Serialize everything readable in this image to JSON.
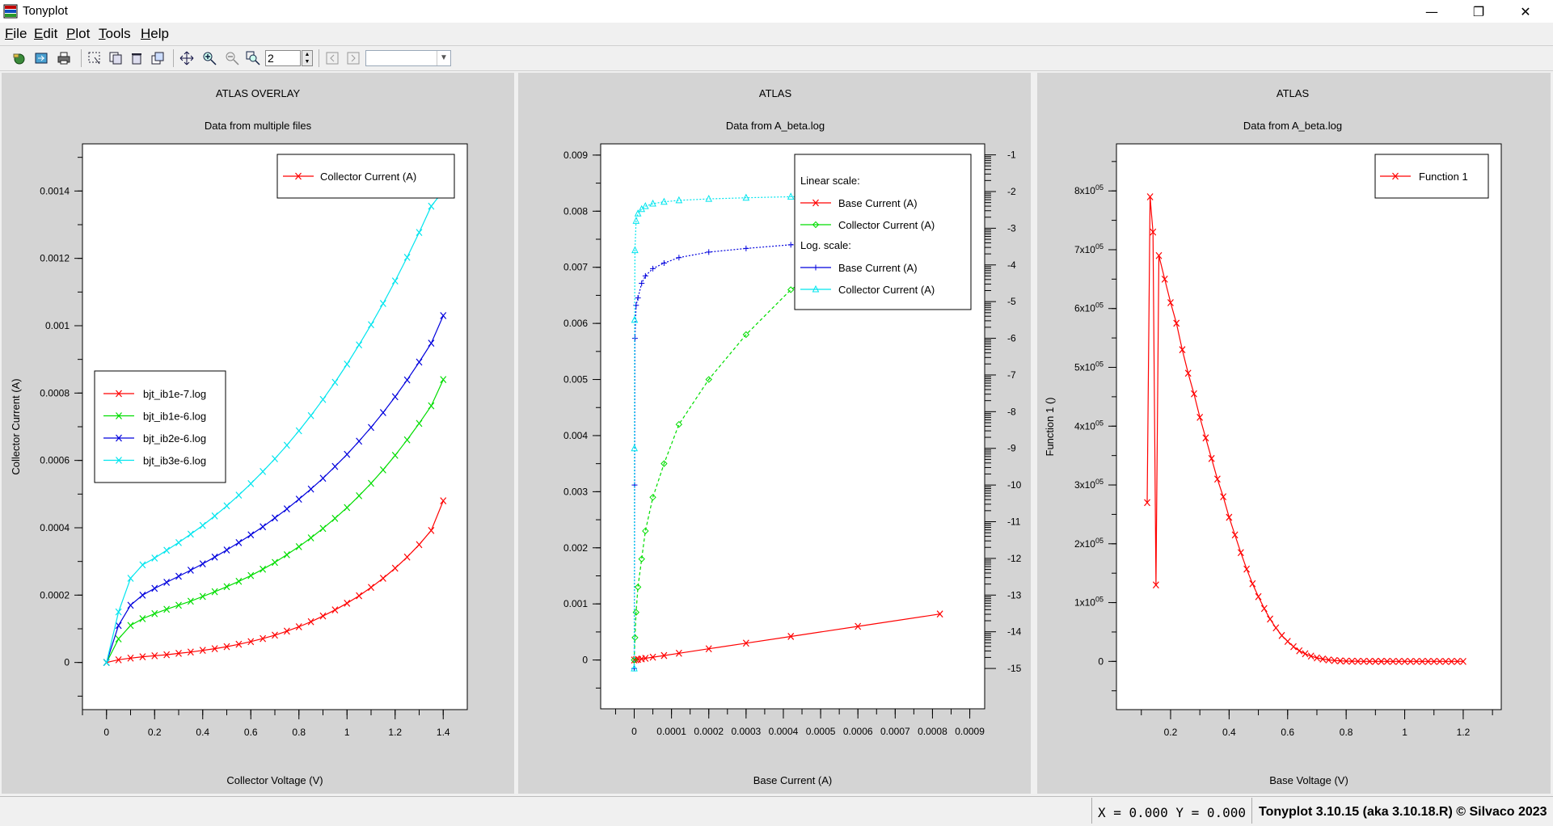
{
  "window": {
    "title": "Tonyplot",
    "minimize": "—",
    "restore": "❐",
    "close": "✕"
  },
  "menu": [
    {
      "label": "File",
      "key": "F",
      "rest": "ile"
    },
    {
      "label": "Edit",
      "key": "E",
      "rest": "dit"
    },
    {
      "label": "Plot",
      "key": "P",
      "rest": "lot"
    },
    {
      "label": "Tools",
      "key": "T",
      "rest": "ools"
    },
    {
      "label": "Help",
      "key": "H",
      "rest": "elp"
    }
  ],
  "toolbar": {
    "icons": [
      "open-icon",
      "import-icon",
      "print-icon",
      "select-region-icon",
      "copy-icon",
      "delete-icon",
      "duplicate-icon",
      "pan-icon",
      "zoom-in-icon",
      "zoom-out-icon",
      "zoom-box-icon",
      "prev-icon",
      "next-icon"
    ],
    "zoom_value": "2",
    "combo_value": ""
  },
  "status": {
    "xy": "X = 0.000 Y = 0.000",
    "version": "Tonyplot 3.10.15 (aka 3.10.18.R) © Silvaco 2023"
  },
  "chart_data": [
    {
      "type": "line",
      "title": "ATLAS OVERLAY",
      "subtitle": "Data from multiple files",
      "xlabel": "Collector Voltage (V)",
      "ylabel": "Collector Current (A)",
      "xlim": [
        -0.1,
        1.5
      ],
      "ylim": [
        -0.00014,
        0.00154
      ],
      "xticks": [
        "0",
        "0.2",
        "0.4",
        "0.6",
        "0.8",
        "1",
        "1.2",
        "1.4"
      ],
      "xtick_values": [
        0,
        0.2,
        0.4,
        0.6,
        0.8,
        1,
        1.2,
        1.4
      ],
      "yticks": [
        "0",
        "0.0002",
        "0.0004",
        "0.0006",
        "0.0008",
        "0.001",
        "0.0012",
        "0.0014"
      ],
      "ytick_values": [
        0,
        0.0002,
        0.0004,
        0.0006,
        0.0008,
        0.001,
        0.0012,
        0.0014
      ],
      "grid": false,
      "legend_title": "Collector Current (A)",
      "legend": [
        {
          "label": "bjt_ib1e-7.log",
          "color": "#ff0000"
        },
        {
          "label": "bjt_ib1e-6.log",
          "color": "#00dd00"
        },
        {
          "label": "bjt_ib2e-6.log",
          "color": "#0000dd"
        },
        {
          "label": "bjt_ib3e-6.log",
          "color": "#00e5ee"
        }
      ],
      "x": [
        0,
        0.05,
        0.1,
        0.15,
        0.2,
        0.25,
        0.3,
        0.35,
        0.4,
        0.45,
        0.5,
        0.55,
        0.6,
        0.65,
        0.7,
        0.75,
        0.8,
        0.85,
        0.9,
        0.95,
        1.0,
        1.05,
        1.1,
        1.15,
        1.2,
        1.25,
        1.3,
        1.35,
        1.4
      ],
      "series": [
        {
          "name": "bjt_ib1e-7.log",
          "color": "#ff0000",
          "values": [
            0,
            8e-06,
            1.3e-05,
            1.7e-05,
            2e-05,
            2.3e-05,
            2.7e-05,
            3.1e-05,
            3.6e-05,
            4.1e-05,
            4.7e-05,
            5.4e-05,
            6.2e-05,
            7.1e-05,
            8.1e-05,
            9.3e-05,
            0.000106,
            0.000121,
            0.000138,
            0.000156,
            0.000176,
            0.000198,
            0.000223,
            0.00025,
            0.00028,
            0.000313,
            0.00035,
            0.000392,
            0.00048
          ]
        },
        {
          "name": "bjt_ib1e-6.log",
          "color": "#00dd00",
          "values": [
            0,
            7e-05,
            0.00011,
            0.00013,
            0.000145,
            0.000158,
            0.00017,
            0.000182,
            0.000196,
            0.00021,
            0.000225,
            0.000241,
            0.000258,
            0.000277,
            0.000297,
            0.00032,
            0.000344,
            0.00037,
            0.000398,
            0.000428,
            0.00046,
            0.000495,
            0.000532,
            0.000572,
            0.000615,
            0.000661,
            0.00071,
            0.000762,
            0.00084
          ]
        },
        {
          "name": "bjt_ib2e-6.log",
          "color": "#0000dd",
          "values": [
            0,
            0.00011,
            0.00017,
            0.0002,
            0.00022,
            0.000238,
            0.000256,
            0.000274,
            0.000293,
            0.000313,
            0.000334,
            0.000356,
            0.000379,
            0.000403,
            0.000429,
            0.000456,
            0.000485,
            0.000515,
            0.000547,
            0.000582,
            0.000618,
            0.000657,
            0.000698,
            0.000742,
            0.000789,
            0.000839,
            0.000892,
            0.000948,
            0.00103
          ]
        },
        {
          "name": "bjt_ib3e-6.log",
          "color": "#00e5ee",
          "values": [
            0,
            0.00015,
            0.00025,
            0.00029,
            0.00031,
            0.000333,
            0.000356,
            0.000381,
            0.000407,
            0.000435,
            0.000465,
            0.000497,
            0.000531,
            0.000567,
            0.000605,
            0.000645,
            0.000688,
            0.000733,
            0.000781,
            0.000832,
            0.000886,
            0.000943,
            0.001003,
            0.001066,
            0.001133,
            0.001203,
            0.001277,
            0.001355,
            0.0014
          ]
        }
      ]
    },
    {
      "type": "line",
      "title": "ATLAS",
      "subtitle": "Data from A_beta.log",
      "xlabel": "Base Current (A)",
      "ylabel": "",
      "xlim": [
        -9e-05,
        0.00094
      ],
      "ylim": [
        -0.00087,
        0.0092
      ],
      "y2lim": [
        -16.1,
        -0.7
      ],
      "xticks": [
        "0",
        "0.0001",
        "0.0002",
        "0.0003",
        "0.0004",
        "0.0005",
        "0.0006",
        "0.0007",
        "0.0008",
        "0.0009"
      ],
      "xtick_values": [
        0,
        0.0001,
        0.0002,
        0.0003,
        0.0004,
        0.0005,
        0.0006,
        0.0007,
        0.0008,
        0.0009
      ],
      "yticks": [
        "0",
        "0.001",
        "0.002",
        "0.003",
        "0.004",
        "0.005",
        "0.006",
        "0.007",
        "0.008",
        "0.009"
      ],
      "ytick_values": [
        0,
        0.001,
        0.002,
        0.003,
        0.004,
        0.005,
        0.006,
        0.007,
        0.008,
        0.009
      ],
      "y2ticks": [
        "-1",
        "-2",
        "-3",
        "-4",
        "-5",
        "-6",
        "-7",
        "-8",
        "-9",
        "-10",
        "-11",
        "-12",
        "-13",
        "-14",
        "-15"
      ],
      "y2tick_values": [
        -1,
        -2,
        -3,
        -4,
        -5,
        -6,
        -7,
        -8,
        -9,
        -10,
        -11,
        -12,
        -13,
        -14,
        -15
      ],
      "grid": false,
      "legend_groups": [
        {
          "heading": "Linear scale:",
          "items": [
            {
              "label": "Base Current (A)",
              "color": "#ff0000"
            },
            {
              "label": "Collector Current (A)",
              "color": "#00dd00"
            }
          ]
        },
        {
          "heading": "Log. scale:",
          "items": [
            {
              "label": "Base Current (A)",
              "color": "#0000dd"
            },
            {
              "label": "Collector Current (A)",
              "color": "#00e5ee"
            }
          ]
        }
      ],
      "series": [
        {
          "name": "Base Current (A)",
          "scale": "linear",
          "color": "#ff0000",
          "x": [
            0,
            5e-06,
            1e-05,
            2e-05,
            3e-05,
            5e-05,
            8e-05,
            0.00012,
            0.0002,
            0.0003,
            0.00042,
            0.0006,
            0.00082
          ],
          "values": [
            0,
            5e-06,
            1e-05,
            2e-05,
            3e-05,
            5e-05,
            8e-05,
            0.00012,
            0.0002,
            0.0003,
            0.00042,
            0.0006,
            0.00082
          ]
        },
        {
          "name": "Collector Current (A)",
          "scale": "linear",
          "color": "#00dd00",
          "x": [
            0,
            2e-06,
            5e-06,
            1e-05,
            2e-05,
            3e-05,
            5e-05,
            8e-05,
            0.00012,
            0.0002,
            0.0003,
            0.00042,
            0.0006,
            0.00082
          ],
          "values": [
            0,
            0.0004,
            0.00085,
            0.0013,
            0.0018,
            0.0023,
            0.0029,
            0.0035,
            0.0042,
            0.005,
            0.0058,
            0.0066,
            0.0074,
            0.0083
          ]
        },
        {
          "name": "Base Current (A)",
          "scale": "log",
          "color": "#0000dd",
          "x": [
            0,
            1e-06,
            2e-06,
            5e-06,
            1e-05,
            2e-05,
            3e-05,
            5e-05,
            8e-05,
            0.00012,
            0.0002,
            0.0003,
            0.00042,
            0.0006,
            0.00082
          ],
          "values": [
            -15,
            -10,
            -6,
            -5.1,
            -4.9,
            -4.5,
            -4.3,
            -4.1,
            -3.95,
            -3.8,
            -3.65,
            -3.55,
            -3.45,
            -3.35,
            -3.25
          ]
        },
        {
          "name": "Collector Current (A)",
          "scale": "log",
          "color": "#00e5ee",
          "x": [
            0,
            5e-07,
            1e-06,
            2e-06,
            5e-06,
            1e-05,
            2e-05,
            3e-05,
            5e-05,
            8e-05,
            0.00012,
            0.0002,
            0.0003,
            0.00042,
            0.0006,
            0.00082
          ],
          "values": [
            -15,
            -9,
            -5.5,
            -3.6,
            -2.8,
            -2.6,
            -2.48,
            -2.4,
            -2.33,
            -2.28,
            -2.24,
            -2.2,
            -2.17,
            -2.14,
            -2.11,
            -2.08
          ]
        }
      ]
    },
    {
      "type": "line",
      "title": "ATLAS",
      "subtitle": "Data from A_beta.log",
      "xlabel": "Base Voltage (V)",
      "ylabel": "Function 1 ()",
      "xlim": [
        0.015,
        1.33
      ],
      "ylim": [
        -82000,
        880000
      ],
      "xticks": [
        "0.2",
        "0.4",
        "0.6",
        "0.8",
        "1",
        "1.2"
      ],
      "xtick_values": [
        0.2,
        0.4,
        0.6,
        0.8,
        1,
        1.2
      ],
      "yticks": [
        "0",
        "1x10",
        "2x10",
        "3x10",
        "4x10",
        "5x10",
        "6x10",
        "7x10",
        "8x10"
      ],
      "ytick_values": [
        0,
        100000,
        200000,
        300000,
        400000,
        500000,
        600000,
        700000,
        800000
      ],
      "ytick_exp": "05",
      "grid": false,
      "legend": [
        {
          "label": "Function 1",
          "color": "#ff0000"
        }
      ],
      "series": [
        {
          "name": "Function 1",
          "color": "#ff0000",
          "x": [
            0.12,
            0.13,
            0.14,
            0.15,
            0.16,
            0.18,
            0.2,
            0.22,
            0.24,
            0.26,
            0.28,
            0.3,
            0.32,
            0.34,
            0.36,
            0.38,
            0.4,
            0.42,
            0.44,
            0.46,
            0.48,
            0.5,
            0.52,
            0.54,
            0.56,
            0.58,
            0.6,
            0.62,
            0.64,
            0.66,
            0.68,
            0.7,
            0.72,
            0.74,
            0.76,
            0.78,
            0.8,
            0.82,
            0.84,
            0.86,
            0.88,
            0.9,
            0.92,
            0.94,
            0.96,
            0.98,
            1.0,
            1.02,
            1.04,
            1.06,
            1.08,
            1.1,
            1.12,
            1.14,
            1.16,
            1.18,
            1.2
          ],
          "values": [
            270000,
            790000,
            730000,
            130000,
            690000,
            650000,
            610000,
            575000,
            530000,
            490000,
            455000,
            415000,
            380000,
            345000,
            310000,
            280000,
            245000,
            215000,
            185000,
            157000,
            132000,
            110000,
            90000,
            72000,
            57000,
            44000,
            34000,
            25000,
            18000,
            13000,
            9000,
            6000,
            4000,
            2500,
            1500,
            900,
            500,
            300,
            150,
            100,
            50,
            20,
            10,
            5,
            0,
            0,
            0,
            0,
            0,
            0,
            0,
            0,
            0,
            0,
            0,
            0,
            0
          ]
        }
      ]
    }
  ]
}
